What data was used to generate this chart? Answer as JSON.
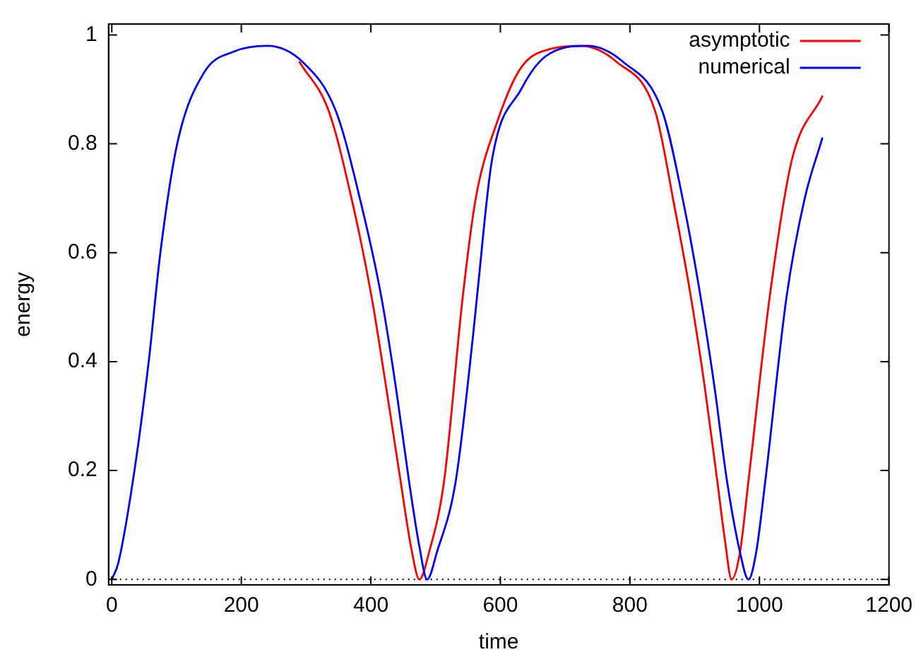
{
  "chart_data": {
    "type": "line",
    "xlabel": "time",
    "ylabel": "energy",
    "xlim": [
      -5,
      1200
    ],
    "ylim": [
      -0.01,
      1.02
    ],
    "xticks": [
      0,
      200,
      400,
      600,
      800,
      1000,
      1200
    ],
    "yticks": [
      0,
      0.2,
      0.4,
      0.6,
      0.8,
      1
    ],
    "grid": false,
    "legend": "top right",
    "marker": "none",
    "line_style": "solid",
    "ref_lines": [
      {
        "axis": "y",
        "value": 0,
        "label": null,
        "color": "#000000",
        "line_style": "dotted"
      }
    ],
    "series": [
      {
        "name": "asymptotic",
        "color": "#ff0000",
        "x": [
          290,
          335,
          372,
          401,
          424,
          446,
          462,
          475,
          490,
          513,
          542,
          562,
          595,
          632,
          680,
          724,
          780,
          839,
          868,
          894,
          916,
          935,
          947,
          957,
          970,
          983,
          1016,
          1050,
          1097
        ],
        "values": [
          0.95,
          0.86,
          0.69,
          0.52,
          0.35,
          0.18,
          0.06,
          0,
          0.05,
          0.18,
          0.52,
          0.7,
          0.84,
          0.94,
          0.975,
          0.98,
          0.95,
          0.86,
          0.69,
          0.52,
          0.35,
          0.18,
          0.07,
          0,
          0.05,
          0.18,
          0.52,
          0.77,
          0.887
        ]
      },
      {
        "name": "numerical",
        "color": "#0000ff",
        "x": [
          0,
          10,
          35,
          57,
          75,
          101,
          142,
          190,
          240,
          295,
          346,
          385,
          416,
          439,
          459,
          475,
          487,
          502,
          531,
          558,
          564,
          587,
          632,
          669,
          735,
          790,
          850,
          883,
          909,
          931,
          950,
          970,
          983,
          995,
          1009,
          1042,
          1070,
          1097
        ],
        "values": [
          0,
          0.03,
          0.2,
          0.4,
          0.6,
          0.8,
          0.93,
          0.97,
          0.98,
          0.95,
          0.86,
          0.69,
          0.52,
          0.35,
          0.18,
          0.06,
          0,
          0.05,
          0.18,
          0.45,
          0.52,
          0.77,
          0.9,
          0.96,
          0.98,
          0.95,
          0.86,
          0.69,
          0.52,
          0.35,
          0.18,
          0.05,
          0,
          0.05,
          0.18,
          0.52,
          0.7,
          0.81
        ]
      }
    ]
  }
}
